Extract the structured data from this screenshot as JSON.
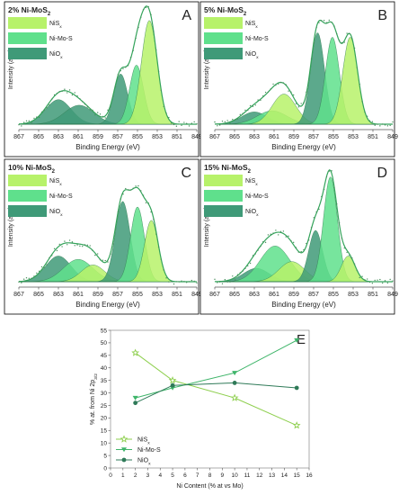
{
  "colors": {
    "nis": "#b7f26a",
    "nimos": "#5fe08c",
    "niox": "#3f9a78",
    "envelope": "#33a35a",
    "points": "#4a8f5e",
    "axis": "#555555",
    "text": "#222222"
  },
  "chart_data": [
    {
      "type": "area",
      "panel": "A",
      "title": "2% Ni-MoS",
      "title_sub": "2",
      "xlabel": "Binding Energy (eV)",
      "ylabel": "Intensity (a.u.)",
      "xlim": [
        867,
        849
      ],
      "xticks": [
        "867",
        "865",
        "863",
        "861",
        "859",
        "857",
        "855",
        "853",
        "851",
        "849"
      ],
      "legend": [
        "NiS",
        "Ni-Mo-S",
        "NiO"
      ],
      "legend_subs": [
        "x",
        "",
        "x"
      ],
      "peaks": [
        {
          "component": "NiOx",
          "center": 863.0,
          "height": 0.22,
          "width": 1.3
        },
        {
          "component": "NiOx",
          "center": 860.9,
          "height": 0.17,
          "width": 1.5
        },
        {
          "component": "NiOx",
          "center": 856.7,
          "height": 0.45,
          "width": 0.7
        },
        {
          "component": "NiMoS",
          "center": 855.1,
          "height": 0.53,
          "width": 0.7
        },
        {
          "component": "NiS",
          "center": 853.8,
          "height": 0.93,
          "width": 0.8
        }
      ]
    },
    {
      "type": "area",
      "panel": "B",
      "title": "5% Ni-MoS",
      "title_sub": "2",
      "xlabel": "Binding Energy (eV)",
      "ylabel": "Intensity (a.u.)",
      "xlim": [
        867,
        849
      ],
      "xticks": [
        "867",
        "865",
        "863",
        "861",
        "859",
        "857",
        "855",
        "853",
        "851",
        "849"
      ],
      "legend": [
        "NiS",
        "Ni-Mo-S",
        "NiO"
      ],
      "legend_subs": [
        "x",
        "",
        "x"
      ],
      "peaks": [
        {
          "component": "NiOx",
          "center": 863.0,
          "height": 0.11,
          "width": 1.3
        },
        {
          "component": "NiMoS",
          "center": 861.2,
          "height": 0.12,
          "width": 1.5
        },
        {
          "component": "NiS",
          "center": 860.0,
          "height": 0.27,
          "width": 1.2
        },
        {
          "component": "NiOx",
          "center": 856.6,
          "height": 0.82,
          "width": 0.7
        },
        {
          "component": "NiMoS",
          "center": 855.1,
          "height": 0.78,
          "width": 0.7
        },
        {
          "component": "NiS",
          "center": 853.3,
          "height": 0.78,
          "width": 0.75
        }
      ]
    },
    {
      "type": "area",
      "panel": "C",
      "title": "10% Ni-MoS",
      "title_sub": "2",
      "xlabel": "Binding Energy (eV)",
      "ylabel": "Intensity (a.u.)",
      "xlim": [
        867,
        849
      ],
      "xticks": [
        "867",
        "865",
        "863",
        "861",
        "859",
        "857",
        "855",
        "853",
        "851",
        "849"
      ],
      "legend": [
        "NiS",
        "Ni-Mo-S",
        "NiO"
      ],
      "legend_subs": [
        "x",
        "",
        "x"
      ],
      "peaks": [
        {
          "component": "NiOx",
          "center": 863.0,
          "height": 0.23,
          "width": 1.3
        },
        {
          "component": "NiMoS",
          "center": 861.0,
          "height": 0.2,
          "width": 1.5
        },
        {
          "component": "NiS",
          "center": 859.5,
          "height": 0.15,
          "width": 1.2
        },
        {
          "component": "NiOx",
          "center": 856.5,
          "height": 0.72,
          "width": 0.75
        },
        {
          "component": "NiMoS",
          "center": 855.0,
          "height": 0.67,
          "width": 0.7
        },
        {
          "component": "NiS",
          "center": 853.6,
          "height": 0.55,
          "width": 0.7
        }
      ]
    },
    {
      "type": "area",
      "panel": "D",
      "title": "15% Ni-MoS",
      "title_sub": "2",
      "xlabel": "Binding Energy (eV)",
      "ylabel": "Intensity (a.u.)",
      "xlim": [
        867,
        849
      ],
      "xticks": [
        "867",
        "865",
        "863",
        "861",
        "859",
        "857",
        "855",
        "853",
        "851",
        "849"
      ],
      "legend": [
        "NiS",
        "Ni-Mo-S",
        "NiO"
      ],
      "legend_subs": [
        "x",
        "",
        "x"
      ],
      "peaks": [
        {
          "component": "NiOx",
          "center": 862.8,
          "height": 0.12,
          "width": 1.3
        },
        {
          "component": "NiMoS",
          "center": 860.9,
          "height": 0.32,
          "width": 1.5
        },
        {
          "component": "NiS",
          "center": 859.2,
          "height": 0.18,
          "width": 1.3
        },
        {
          "component": "NiOx",
          "center": 856.8,
          "height": 0.46,
          "width": 0.7
        },
        {
          "component": "NiMoS",
          "center": 855.3,
          "height": 0.94,
          "width": 0.7
        },
        {
          "component": "NiS",
          "center": 853.5,
          "height": 0.23,
          "width": 0.7
        }
      ]
    },
    {
      "type": "line",
      "panel": "E",
      "xlabel": "Ni Content (% at vs Mo)",
      "ylabel": "% at. from Ni 2p",
      "ylabel_sub": "3/2",
      "xlim": [
        0,
        16
      ],
      "ylim": [
        0,
        55
      ],
      "xticks": [
        "0",
        "1",
        "2",
        "3",
        "4",
        "5",
        "6",
        "7",
        "8",
        "9",
        "10",
        "11",
        "12",
        "13",
        "14",
        "15",
        "16"
      ],
      "yticks": [
        "0",
        "5",
        "10",
        "15",
        "20",
        "25",
        "30",
        "35",
        "40",
        "45",
        "50",
        "55"
      ],
      "x": [
        2,
        5,
        10,
        15
      ],
      "series": [
        {
          "name": "NiS",
          "name_sub": "x",
          "values": [
            46,
            35,
            28,
            17
          ],
          "marker": "star"
        },
        {
          "name": "Ni-Mo-S",
          "name_sub": "",
          "values": [
            28,
            32,
            38,
            51
          ],
          "marker": "triangle-down"
        },
        {
          "name": "NiO",
          "name_sub": "x",
          "values": [
            26,
            33,
            34,
            32
          ],
          "marker": "circle"
        }
      ]
    }
  ]
}
